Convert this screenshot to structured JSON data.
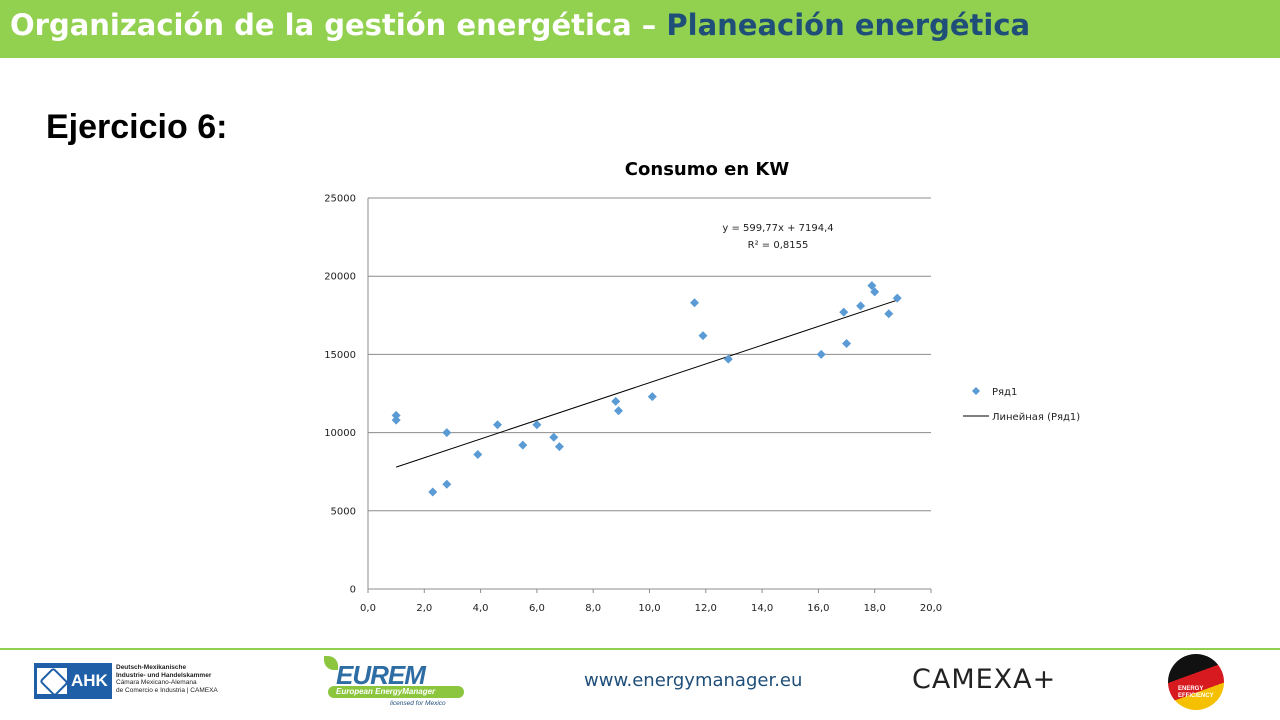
{
  "header": {
    "title_main": "Organización de la gestión energética – ",
    "title_accent": "Planeación energética"
  },
  "exercise_title": "Ejercicio 6:",
  "chart_data": {
    "type": "scatter",
    "title": "Consumo en KW",
    "xlabel": "",
    "ylabel": "",
    "xlim": [
      0,
      20
    ],
    "ylim": [
      0,
      25000
    ],
    "x_ticks": [
      "0,0",
      "2,0",
      "4,0",
      "6,0",
      "8,0",
      "10,0",
      "12,0",
      "14,0",
      "16,0",
      "18,0",
      "20,0"
    ],
    "y_ticks": [
      "0",
      "5000",
      "10000",
      "15000",
      "20000",
      "25000"
    ],
    "grid": "horizontal",
    "legend_position": "right",
    "series": [
      {
        "name": "Ряд1",
        "color": "#5b9bd5",
        "marker": "diamond",
        "points": [
          [
            1.0,
            11100
          ],
          [
            1.0,
            10800
          ],
          [
            2.3,
            6200
          ],
          [
            2.8,
            10000
          ],
          [
            2.8,
            6700
          ],
          [
            3.9,
            8600
          ],
          [
            4.6,
            10500
          ],
          [
            5.5,
            9200
          ],
          [
            6.0,
            10500
          ],
          [
            6.6,
            9700
          ],
          [
            6.8,
            9100
          ],
          [
            8.8,
            12000
          ],
          [
            8.9,
            11400
          ],
          [
            10.1,
            12300
          ],
          [
            11.6,
            18300
          ],
          [
            11.9,
            16200
          ],
          [
            12.8,
            14700
          ],
          [
            16.1,
            15000
          ],
          [
            16.9,
            17700
          ],
          [
            17.0,
            15700
          ],
          [
            17.5,
            18100
          ],
          [
            17.9,
            19400
          ],
          [
            18.0,
            19000
          ],
          [
            18.5,
            17600
          ],
          [
            18.8,
            18600
          ]
        ]
      }
    ],
    "trendline": {
      "name": "Линейная (Ряд1)",
      "color": "#000000",
      "slope": 599.77,
      "intercept": 7194.4,
      "x_range": [
        1.0,
        18.8
      ],
      "equation": "y = 599,77x + 7194,4",
      "r2": "R² = 0,8155"
    }
  },
  "footer": {
    "url": "www.energymanager.eu",
    "ahk": {
      "label": "AHK",
      "line1": "Deutsch-Mexikanische",
      "line2": "Industrie- und Handelskammer",
      "line3": "Cámara Mexicano-Alemana",
      "line4": "de Comercio e Industria | CAMEXA"
    },
    "eurem": {
      "word": "EUREM",
      "sub": "European EnergyManager",
      "licensed": "licensed for Mexico"
    },
    "camexa": "CAMEXA+",
    "energy_efficiency": "ENERGY EFFICIENCY"
  },
  "colors": {
    "header_green": "#92d050",
    "accent_blue": "#1f4e79",
    "marker_blue": "#5b9bd5"
  }
}
